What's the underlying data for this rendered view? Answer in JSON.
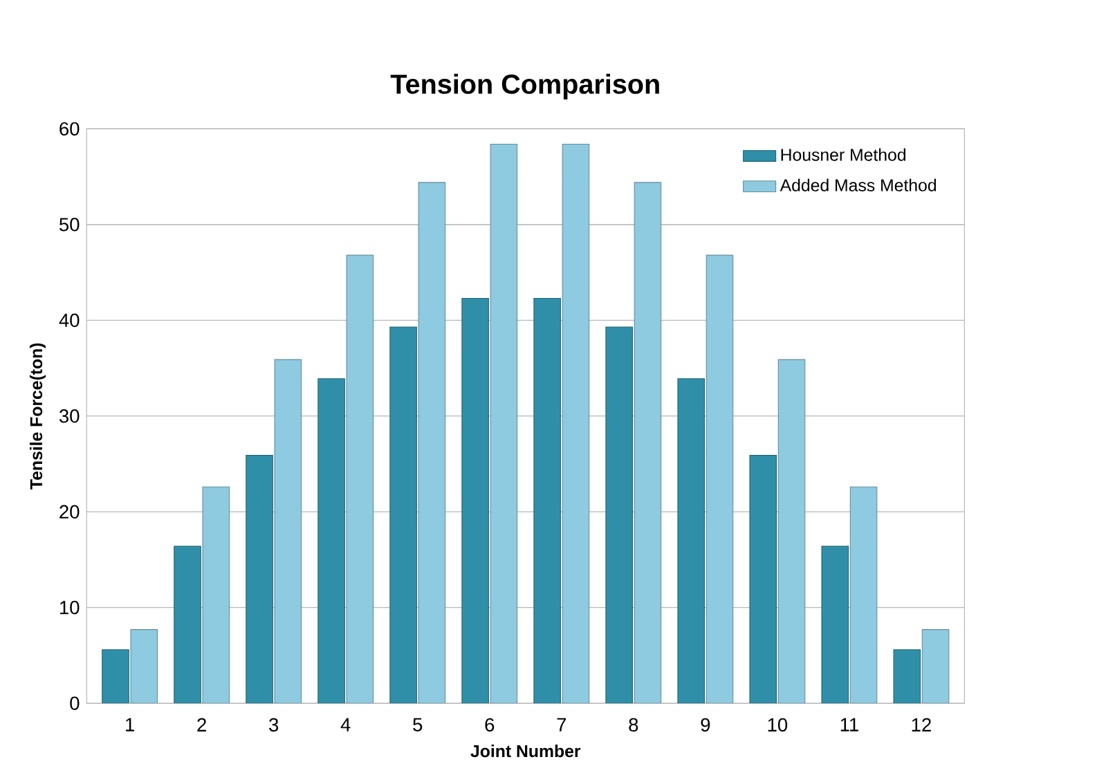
{
  "chart_data": {
    "type": "bar",
    "title": "Tension Comparison",
    "xlabel": "Joint Number",
    "ylabel": "Tensile Force(ton)",
    "categories": [
      "1",
      "2",
      "3",
      "4",
      "5",
      "6",
      "7",
      "8",
      "9",
      "10",
      "11",
      "12"
    ],
    "series": [
      {
        "name": "Housner Method",
        "color": "#2f8fa9",
        "values": [
          5.6,
          16.4,
          25.9,
          33.9,
          39.3,
          42.3,
          42.3,
          39.3,
          33.9,
          25.9,
          16.4,
          5.6
        ]
      },
      {
        "name": "Added Mass Method",
        "color": "#8ecae0",
        "values": [
          7.7,
          22.6,
          35.9,
          46.8,
          54.4,
          58.4,
          58.4,
          54.4,
          46.8,
          35.9,
          22.6,
          7.7
        ]
      }
    ],
    "ylim": [
      0,
      60
    ],
    "yticks": [
      0,
      10,
      20,
      30,
      40,
      50,
      60
    ],
    "grid": "y",
    "legend": "top right"
  }
}
